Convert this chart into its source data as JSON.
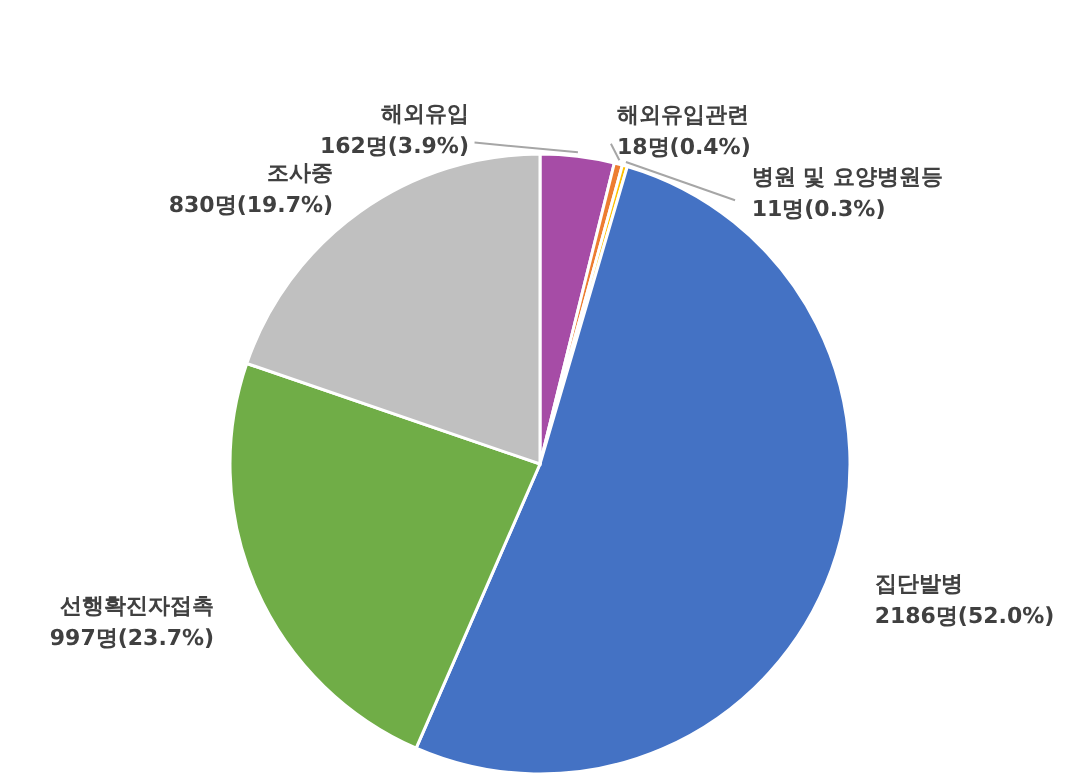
{
  "chart_data": {
    "type": "pie",
    "categories": [
      "해외유입",
      "해외유입관련",
      "병원 및 요양병원등",
      "집단발병",
      "선행확진자접촉",
      "조사중"
    ],
    "values": [
      162,
      18,
      11,
      2186,
      997,
      830
    ],
    "value_labels": [
      "162명(3.9%)",
      "18명(0.4%)",
      "11명(0.3%)",
      "2186명(52.0%)",
      "997명(23.7%)",
      "830명(19.7%)"
    ],
    "colors": [
      "#a64ca6",
      "#ed7d31",
      "#ffc000",
      "#4472c4",
      "#70ad47",
      "#c0c0c0"
    ]
  }
}
